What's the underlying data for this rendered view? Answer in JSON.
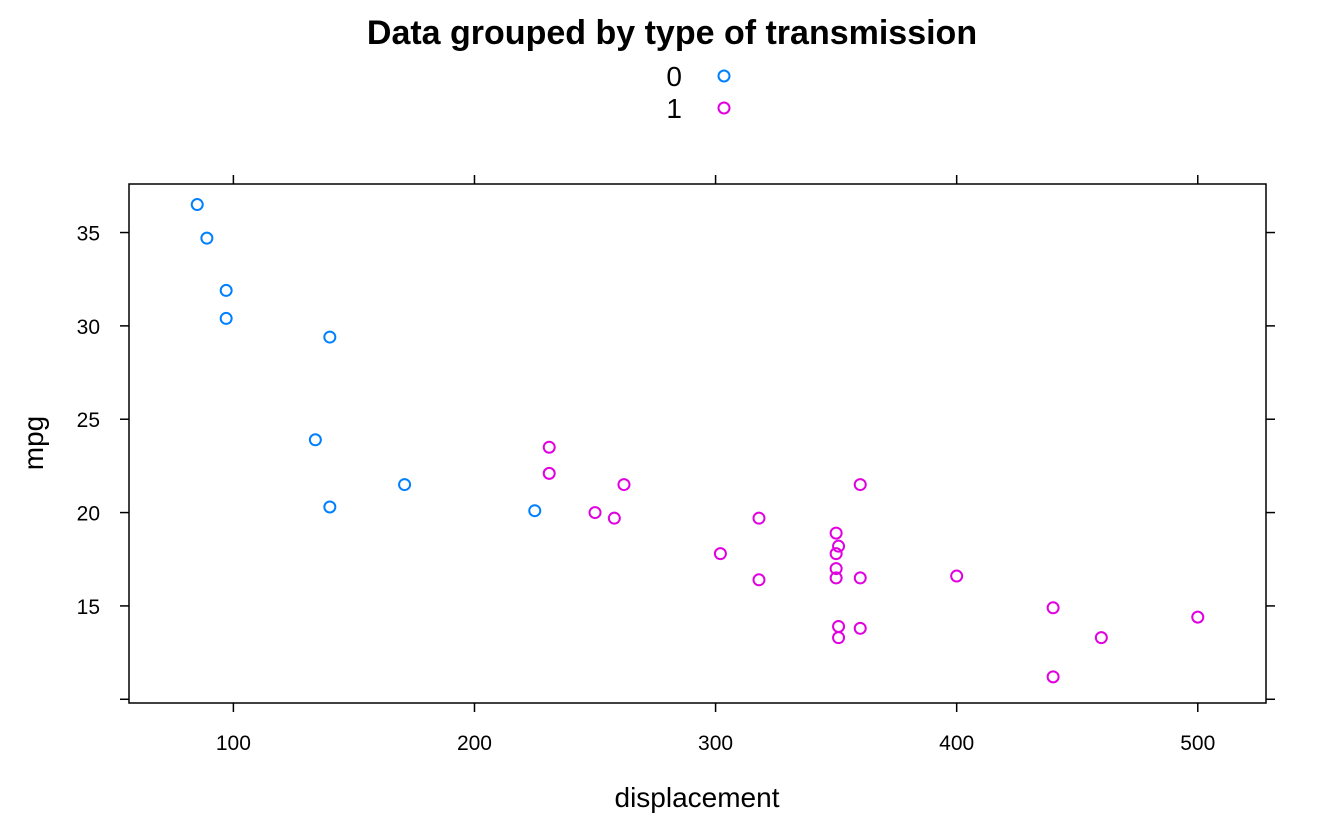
{
  "chart_data": {
    "type": "scatter",
    "title": "Data grouped by type of transmission",
    "xlabel": "displacement",
    "ylabel": "mpg",
    "xlim": [
      56.7,
      528.3
    ],
    "ylim": [
      9.8,
      37.6
    ],
    "xticks": [
      100,
      200,
      300,
      400,
      500
    ],
    "yticks": [
      15,
      20,
      25,
      30,
      35
    ],
    "grid": false,
    "legend_position": "top-center",
    "series": [
      {
        "name": "0",
        "color": "#0080ff",
        "points": [
          {
            "x": 85,
            "y": 36.5
          },
          {
            "x": 89,
            "y": 34.7
          },
          {
            "x": 97,
            "y": 31.9
          },
          {
            "x": 97,
            "y": 30.4
          },
          {
            "x": 140,
            "y": 29.4
          },
          {
            "x": 134,
            "y": 23.9
          },
          {
            "x": 140,
            "y": 20.3
          },
          {
            "x": 171,
            "y": 21.5
          },
          {
            "x": 225,
            "y": 20.1
          }
        ]
      },
      {
        "name": "1",
        "color": "#e000e0",
        "points": [
          {
            "x": 231,
            "y": 23.5
          },
          {
            "x": 231,
            "y": 22.1
          },
          {
            "x": 262,
            "y": 21.5
          },
          {
            "x": 250,
            "y": 20.0
          },
          {
            "x": 258,
            "y": 19.7
          },
          {
            "x": 318,
            "y": 19.7
          },
          {
            "x": 302,
            "y": 17.8
          },
          {
            "x": 318,
            "y": 16.4
          },
          {
            "x": 360,
            "y": 21.5
          },
          {
            "x": 350,
            "y": 18.9
          },
          {
            "x": 351,
            "y": 18.2
          },
          {
            "x": 350,
            "y": 17.8
          },
          {
            "x": 350,
            "y": 17.0
          },
          {
            "x": 350,
            "y": 16.5
          },
          {
            "x": 360,
            "y": 16.5
          },
          {
            "x": 400,
            "y": 16.6
          },
          {
            "x": 351,
            "y": 13.9
          },
          {
            "x": 351,
            "y": 13.3
          },
          {
            "x": 360,
            "y": 13.8
          },
          {
            "x": 440,
            "y": 14.9
          },
          {
            "x": 460,
            "y": 13.3
          },
          {
            "x": 500,
            "y": 14.4
          },
          {
            "x": 440,
            "y": 11.2
          }
        ]
      }
    ]
  }
}
